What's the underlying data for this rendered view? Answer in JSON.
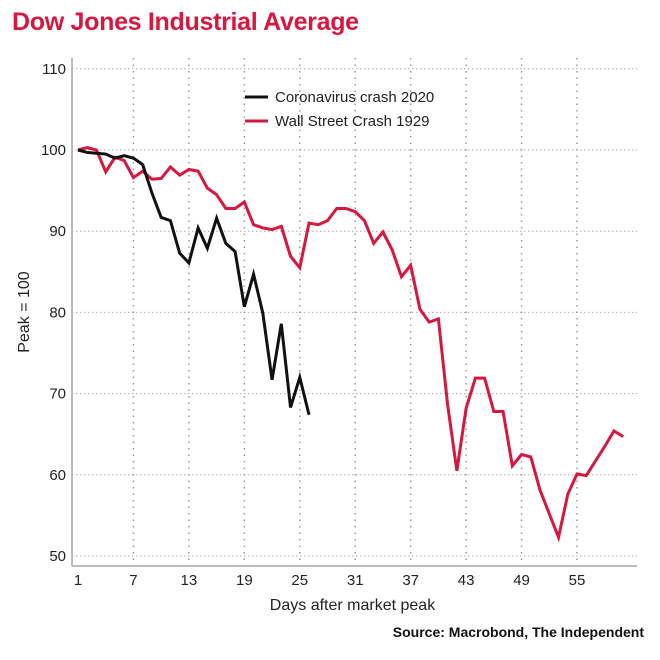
{
  "chart_data": {
    "type": "line",
    "title": "Dow Jones Industrial Average",
    "xlabel": "Days after market peak",
    "ylabel": "Peak = 100",
    "xlim": [
      1,
      61
    ],
    "ylim": [
      49,
      111
    ],
    "xticks": [
      1,
      7,
      13,
      19,
      25,
      31,
      37,
      43,
      49,
      55
    ],
    "yticks": [
      50,
      60,
      70,
      80,
      90,
      100,
      110
    ],
    "grid": true,
    "legend": "top-center",
    "series": [
      {
        "name": "Coronavirus crash 2020",
        "color": "#111111",
        "x": [
          1,
          2,
          3,
          4,
          5,
          6,
          7,
          8,
          9,
          10,
          11,
          12,
          13,
          14,
          15,
          16,
          17,
          18,
          19,
          20,
          21,
          22,
          23,
          24,
          25,
          26
        ],
        "values": [
          100,
          99.7,
          99.6,
          99.5,
          99,
          99.3,
          99,
          98.2,
          94.7,
          91.7,
          91.3,
          87.3,
          86.1,
          90.4,
          87.9,
          91.6,
          88.5,
          87.5,
          80.7,
          84.7,
          79.9,
          71.7,
          78.6,
          68.3,
          72,
          67.4
        ]
      },
      {
        "name": "Wall Street Crash 1929",
        "color": "#d7173d",
        "x": [
          1,
          2,
          3,
          4,
          5,
          6,
          7,
          8,
          9,
          10,
          11,
          12,
          13,
          14,
          15,
          16,
          17,
          18,
          19,
          20,
          21,
          22,
          23,
          24,
          25,
          26,
          27,
          28,
          29,
          30,
          31,
          32,
          33,
          34,
          35,
          36,
          37,
          38,
          39,
          40,
          41,
          42,
          43,
          44,
          45,
          46,
          47,
          48,
          49,
          50,
          51,
          52,
          53,
          54,
          55,
          56,
          57,
          58,
          59,
          60
        ],
        "values": [
          100,
          100.3,
          100,
          97.3,
          99.1,
          98.7,
          96.6,
          97.4,
          96.4,
          96.5,
          97.9,
          96.9,
          97.6,
          97.4,
          95.3,
          94.5,
          92.8,
          92.8,
          93.6,
          90.8,
          90.4,
          90.2,
          90.6,
          86.9,
          85.5,
          91,
          90.8,
          91.3,
          92.8,
          92.8,
          92.4,
          91.3,
          88.5,
          89.9,
          87.7,
          84.4,
          85.8,
          80.4,
          78.8,
          79.2,
          68.6,
          60.5,
          68.2,
          71.9,
          71.9,
          67.8,
          67.8,
          61.1,
          62.5,
          62.2,
          58.1,
          55.2,
          52.3,
          57.6,
          60.1,
          59.9,
          61.7,
          63.5,
          65.4,
          64.7
        ]
      }
    ]
  },
  "source": "Source: Macrobond, The Independent"
}
